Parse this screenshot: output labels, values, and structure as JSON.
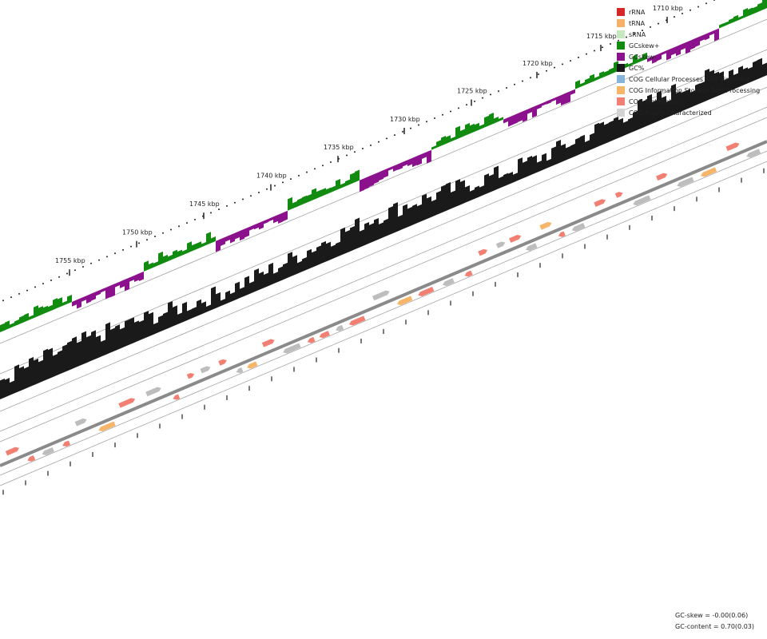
{
  "ticks": [
    {
      "label": "1710 kbp",
      "faded": true
    },
    {
      "label": "1715 kbp"
    },
    {
      "label": "1720 kbp"
    },
    {
      "label": "1725 kbp"
    },
    {
      "label": "1730 kbp"
    },
    {
      "label": "1735 kbp"
    },
    {
      "label": "1740 kbp"
    },
    {
      "label": "1745 kbp"
    },
    {
      "label": "1750 kbp"
    },
    {
      "label": "1755 kbp"
    }
  ],
  "legend": [
    {
      "label": "rRNA",
      "color": "#d62728"
    },
    {
      "label": "tRNA",
      "color": "#f5b069"
    },
    {
      "label": "sRNA",
      "color": "#c5e8c0"
    },
    {
      "label": "GCskew+",
      "color": "#118c11"
    },
    {
      "label": "GCskew-",
      "color": "#8c118c"
    },
    {
      "label": "GC%",
      "color": "#1a1a1a"
    },
    {
      "label": "COG Cellular Processes And Signaling",
      "color": "#86b4da"
    },
    {
      "label": "COG Information Storage And Processing",
      "color": "#f7b56a"
    },
    {
      "label": "COG Metabolism",
      "color": "#f28072"
    },
    {
      "label": "COG Poorly Characterized",
      "color": "#d3d3d3"
    }
  ],
  "stats": {
    "gc_skew": "GC-skew = -0.00(0.06)",
    "gc_content": "GC-content = 0.70(0.03)"
  }
}
